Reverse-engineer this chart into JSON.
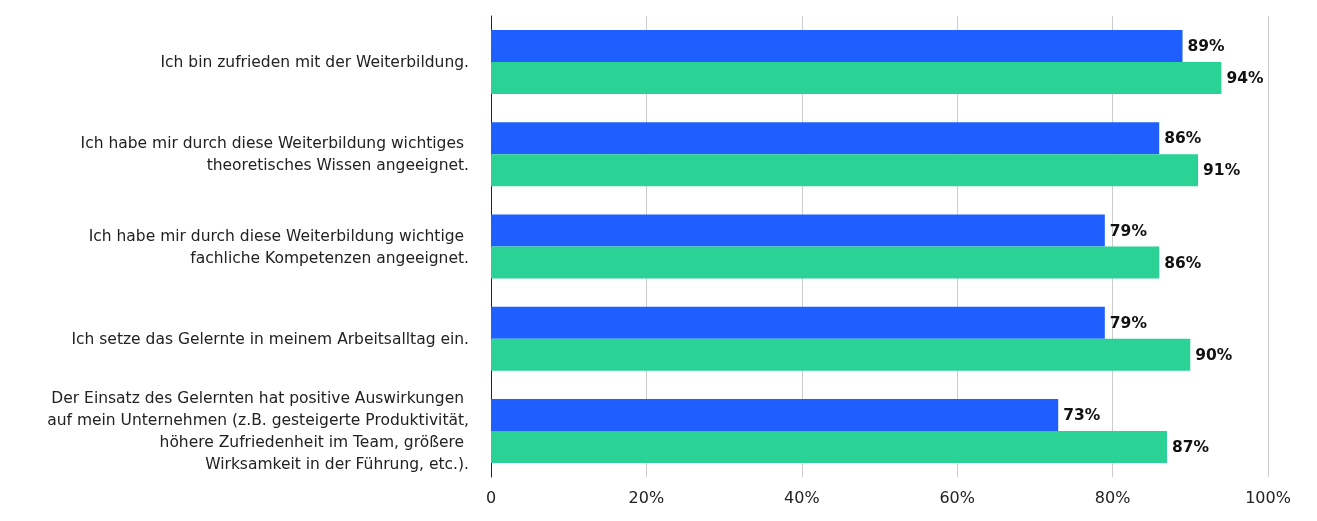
{
  "chart_data": {
    "type": "bar",
    "orientation": "horizontal",
    "categories": [
      "Ich bin zufrieden mit der Weiterbildung.",
      "Ich habe mir durch diese Weiterbildung wichtiges theoretisches Wissen angeeignet.",
      "Ich habe mir durch diese Weiterbildung wichtige fachliche Kompetenzen angeeignet.",
      "Ich setze das Gelernte in meinem Arbeitsalltag ein.",
      "Der Einsatz des Gelernten hat positive Auswirkungen auf mein Unternehmen (z.B. gesteigerte Produktivität, höhere Zufriedenheit im Team, größere Wirksamkeit in der Führung, etc.)."
    ],
    "series": [
      {
        "color": "#1f5fff",
        "values": [
          89,
          86,
          79,
          79,
          73
        ],
        "value_labels": [
          "89%",
          "86%",
          "79%",
          "79%",
          "73%"
        ]
      },
      {
        "color": "#2ad296",
        "values": [
          94,
          91,
          86,
          90,
          87
        ],
        "value_labels": [
          "94%",
          "91%",
          "86%",
          "90%",
          "87%"
        ]
      }
    ],
    "xlim": [
      0,
      100
    ],
    "xticks": [
      0,
      {
        "value": 20,
        "label": "20%"
      },
      {
        "value": 40,
        "label": "40%"
      },
      {
        "value": 60,
        "label": "60%"
      },
      {
        "value": 80,
        "label": "80%"
      },
      {
        "value": 100,
        "label": "100%"
      }
    ],
    "grid": "x"
  }
}
